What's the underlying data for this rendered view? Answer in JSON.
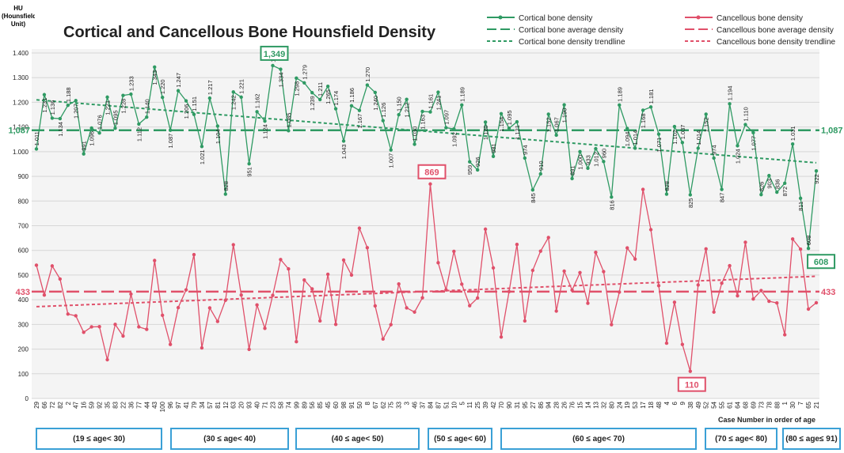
{
  "chart_data": {
    "type": "line",
    "title": "Cortical and Cancellous Bone Hounsfield Density",
    "y_label": "HU (Hounsfield Unit)",
    "x_label": "Case Number in order of age",
    "ylim": [
      0,
      1400
    ],
    "yticks": [
      {
        "value": 0,
        "label": "0"
      },
      {
        "value": 100,
        "label": "100"
      },
      {
        "value": 200,
        "label": "200"
      },
      {
        "value": 300,
        "label": "300"
      },
      {
        "value": 400,
        "label": "400"
      },
      {
        "value": 500,
        "label": "500"
      },
      {
        "value": 600,
        "label": "600"
      },
      {
        "value": 700,
        "label": "700"
      },
      {
        "value": 800,
        "label": "800"
      },
      {
        "value": 900,
        "label": "900"
      },
      {
        "value": 1000,
        "label": "1.000"
      },
      {
        "value": 1100,
        "label": "1.100"
      },
      {
        "value": 1200,
        "label": "1.200"
      },
      {
        "value": 1300,
        "label": "1.300"
      },
      {
        "value": 1400,
        "label": "1.400"
      }
    ],
    "grid": true,
    "categories": [
      "29",
      "66",
      "72",
      "82",
      "2",
      "47",
      "16",
      "59",
      "92",
      "35",
      "83",
      "22",
      "36",
      "77",
      "44",
      "43",
      "100",
      "96",
      "97",
      "41",
      "79",
      "34",
      "57",
      "81",
      "12",
      "63",
      "20",
      "93",
      "40",
      "71",
      "23",
      "58",
      "74",
      "99",
      "89",
      "56",
      "85",
      "45",
      "60",
      "98",
      "91",
      "50",
      "8",
      "67",
      "62",
      "75",
      "33",
      "3",
      "46",
      "37",
      "84",
      "87",
      "51",
      "10",
      "5",
      "11",
      "25",
      "39",
      "42",
      "70",
      "90",
      "31",
      "95",
      "27",
      "86",
      "94",
      "28",
      "26",
      "76",
      "15",
      "14",
      "13",
      "32",
      "80",
      "24",
      "19",
      "53",
      "17",
      "18",
      "48",
      "4",
      "6",
      "9",
      "38",
      "49",
      "52",
      "54",
      "55",
      "61",
      "64",
      "68",
      "69",
      "73",
      "78",
      "88",
      "1",
      "30",
      "7",
      "65",
      "21"
    ],
    "series": [
      {
        "name": "Cortical bone density",
        "color": "#2f9a63",
        "values": [
          1011,
          1231,
          1136,
          1134,
          1188,
          1207,
          991,
          1096,
          1076,
          1221,
          1095,
          1228,
          1233,
          1112,
          1140,
          1343,
          1220,
          1087,
          1247,
          1206,
          1151,
          1021,
          1217,
          1104,
          828,
          1242,
          1221,
          951,
          1162,
          1124,
          1349,
          1334,
          1085,
          1298,
          1279,
          1239,
          1211,
          1265,
          1174,
          1043,
          1186,
          1167,
          1270,
          1240,
          1126,
          1007,
          1150,
          1212,
          1030,
          1163,
          1161,
          1241,
          1097,
          1092,
          1189,
          959,
          926,
          1120,
          981,
          1154,
          1095,
          1121,
          974,
          845,
          910,
          1152,
          1067,
          1190,
          891,
          1000,
          933,
          1012,
          960,
          816,
          1189,
          1094,
          1014,
          1168,
          1181,
          1071,
          828,
          1102,
          1037,
          825,
          1014,
          1152,
          974,
          847,
          1194,
          1024,
          1110,
          1077,
          826,
          903,
          836,
          872,
          1031,
          811,
          608,
          922
        ],
        "value_labels": [
          "1.011",
          "1.231",
          "1.136",
          "1.134",
          "1.188",
          "1.207",
          "991",
          "1.096",
          "1.076",
          "1.221",
          "1.095",
          "1.228",
          "1.233",
          "1.112",
          "1.140",
          "1.343",
          "1.220",
          "1.087",
          "1.247",
          "1.206",
          "1.151",
          "1.021",
          "1.217",
          "1.104",
          "828",
          "1.242",
          "1.221",
          "951",
          "1.162",
          "1.124",
          "1.349",
          "1.334",
          "1.085",
          "1.298",
          "1.279",
          "1.239",
          "1.211",
          "1.265",
          "1.174",
          "1.043",
          "1.186",
          "1.167",
          "1.270",
          "1.240",
          "1.126",
          "1.007",
          "1.150",
          "1.212",
          "1.030",
          "1.163",
          "1.161",
          "1.241",
          "1.097",
          "1.092",
          "1.189",
          "959",
          "926",
          "1.120",
          "981",
          "1.154",
          "1.095",
          "1.121",
          "974",
          "845",
          "910",
          "1.152",
          "1.067",
          "1.190",
          "891",
          "1.000",
          "933",
          "1.012",
          "960",
          "816",
          "1.189",
          "1.094",
          "1.014",
          "1.168",
          "1.181",
          "1.071",
          "828",
          "1.102",
          "1.037",
          "825",
          "1.014",
          "1.152",
          "974",
          "847",
          "1.194",
          "1.024",
          "1.110",
          "1.077",
          "826",
          "903",
          "836",
          "872",
          "1.031",
          "811",
          "608",
          "922"
        ],
        "average": 1087,
        "average_label": "1,087",
        "average_name": "Cortical bone average density",
        "trendline": [
          1210,
          955
        ],
        "trendline_name": "Cortical bone density trendline"
      },
      {
        "name": "Cancellous bone density",
        "color": "#e0506a",
        "values": [
          540,
          419,
          537,
          484,
          342,
          335,
          268,
          290,
          291,
          157,
          300,
          253,
          423,
          290,
          280,
          559,
          337,
          219,
          368,
          440,
          583,
          205,
          367,
          312,
          398,
          623,
          419,
          199,
          379,
          284,
          418,
          563,
          525,
          230,
          480,
          444,
          314,
          503,
          300,
          561,
          500,
          690,
          611,
          375,
          241,
          299,
          464,
          367,
          350,
          408,
          869,
          550,
          440,
          596,
          463,
          376,
          407,
          686,
          529,
          249,
          433,
          624,
          314,
          519,
          597,
          652,
          354,
          516,
          439,
          510,
          386,
          592,
          514,
          299,
          431,
          610,
          565,
          847,
          684,
          457,
          224,
          390,
          219,
          110,
          460,
          606,
          350,
          467,
          538,
          416,
          633,
          403,
          437,
          394,
          387,
          258,
          646,
          605,
          362,
          388
        ],
        "average": 433,
        "average_label": "433",
        "average_name": "Cancellous bone average density",
        "trendline": [
          372,
          495
        ],
        "trendline_name": "Cancellous bone density trendline"
      }
    ],
    "annotations": [
      {
        "label": "1,349",
        "value": 1349
      },
      {
        "label": "869",
        "value": 869
      },
      {
        "label": "110",
        "value": 110
      },
      {
        "label": "608",
        "value": 608
      }
    ],
    "age_groups": [
      "(19 ≤ age< 30)",
      "(30 ≤ age< 40)",
      "(40 ≤ age< 50)",
      "(50 ≤ age< 60)",
      "(60 ≤ age< 70)",
      "(70 ≤ age< 80)",
      "(80 ≤ age≤ 91)"
    ]
  }
}
